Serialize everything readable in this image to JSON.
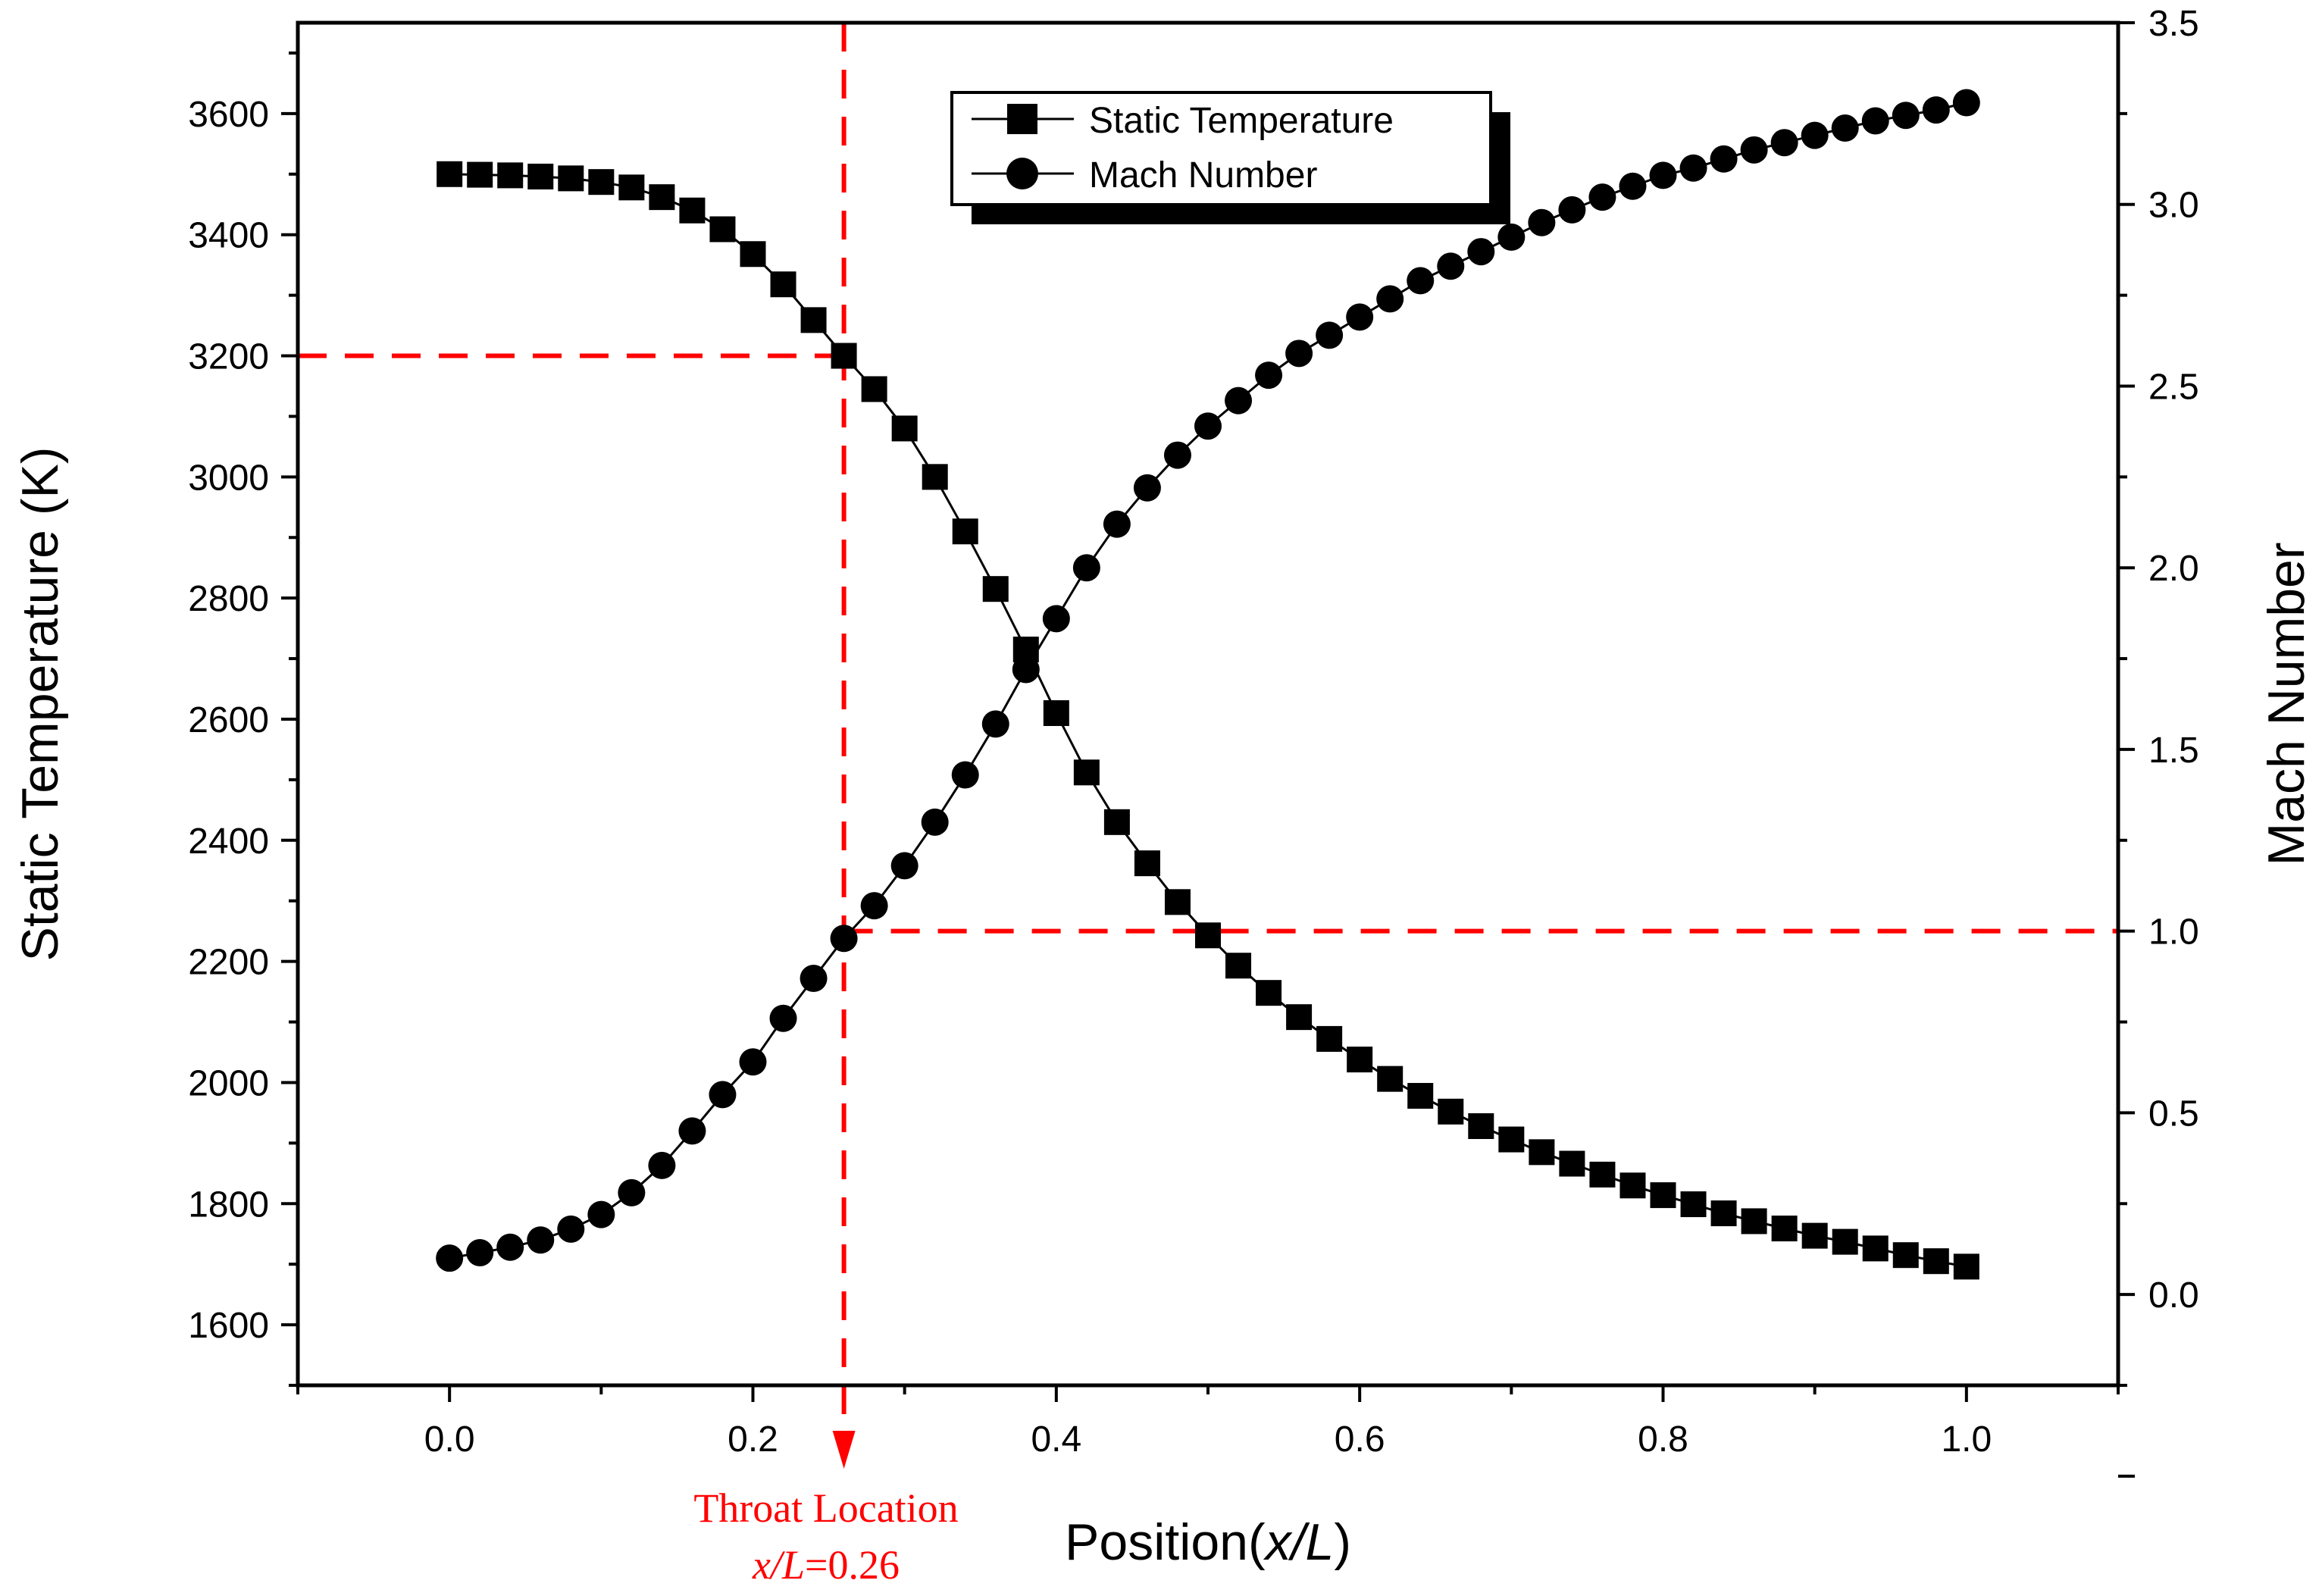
{
  "chart_data": {
    "type": "line",
    "x": [
      0.0,
      0.02,
      0.04,
      0.06,
      0.08,
      0.1,
      0.12,
      0.14,
      0.16,
      0.18,
      0.2,
      0.22,
      0.24,
      0.26,
      0.28,
      0.3,
      0.32,
      0.34,
      0.36,
      0.38,
      0.4,
      0.42,
      0.44,
      0.46,
      0.48,
      0.5,
      0.52,
      0.54,
      0.56,
      0.58,
      0.6,
      0.62,
      0.64,
      0.66,
      0.68,
      0.7,
      0.72,
      0.74,
      0.76,
      0.78,
      0.8,
      0.82,
      0.84,
      0.86,
      0.88,
      0.9,
      0.92,
      0.94,
      0.96,
      0.98,
      1.0
    ],
    "series": [
      {
        "name": "Static Temperature",
        "axis": "left",
        "marker": "square",
        "color": "#000000",
        "values": [
          3500,
          3499,
          3498,
          3496,
          3493,
          3487,
          3478,
          3462,
          3440,
          3409,
          3368,
          3318,
          3259,
          3200,
          3145,
          3080,
          3000,
          2910,
          2815,
          2715,
          2610,
          2512,
          2430,
          2362,
          2298,
          2243,
          2193,
          2148,
          2108,
          2072,
          2038,
          2006,
          1978,
          1952,
          1928,
          1906,
          1885,
          1866,
          1848,
          1830,
          1814,
          1799,
          1784,
          1771,
          1759,
          1747,
          1737,
          1726,
          1715,
          1705,
          1696
        ]
      },
      {
        "name": "Mach Number",
        "axis": "right",
        "marker": "circle",
        "color": "#000000",
        "values": [
          0.1,
          0.115,
          0.13,
          0.15,
          0.18,
          0.22,
          0.28,
          0.355,
          0.45,
          0.55,
          0.64,
          0.76,
          0.87,
          0.98,
          1.07,
          1.18,
          1.3,
          1.43,
          1.57,
          1.72,
          1.86,
          2.0,
          2.12,
          2.22,
          2.31,
          2.39,
          2.46,
          2.53,
          2.59,
          2.64,
          2.69,
          2.74,
          2.79,
          2.83,
          2.87,
          2.91,
          2.95,
          2.985,
          3.02,
          3.05,
          3.08,
          3.1,
          3.125,
          3.15,
          3.17,
          3.19,
          3.21,
          3.23,
          3.245,
          3.26,
          3.28
        ]
      }
    ],
    "xlabel_main": "Position(",
    "xlabel_italic": "x/L",
    "xlabel_close": ")",
    "ylabel_left": "Static Temperature (K)",
    "ylabel_right": "Mach Number",
    "xlim": [
      -0.1,
      1.1
    ],
    "ylim_left": [
      1500,
      3750
    ],
    "ylim_right": [
      -0.25,
      3.5
    ],
    "xticks": [
      "0.0",
      "0.2",
      "0.4",
      "0.6",
      "0.8",
      "1.0"
    ],
    "yticks_left": [
      "1600",
      "1800",
      "2000",
      "2200",
      "2400",
      "2600",
      "2800",
      "3000",
      "3200",
      "3400",
      "3600"
    ],
    "yticks_right": [
      "0.0",
      "0.5",
      "1.0",
      "1.5",
      "2.0",
      "2.5",
      "3.0",
      "3.5"
    ],
    "grid": false,
    "legend_position": "top-center",
    "reference_lines": {
      "color": "#ff0000",
      "throat_x": 0.26,
      "temperature_level": 3200,
      "mach_level": 1.0
    },
    "annotation": {
      "line1": "Throat Location",
      "line2_italic": "x/L",
      "line2_value": "=0.26"
    }
  }
}
